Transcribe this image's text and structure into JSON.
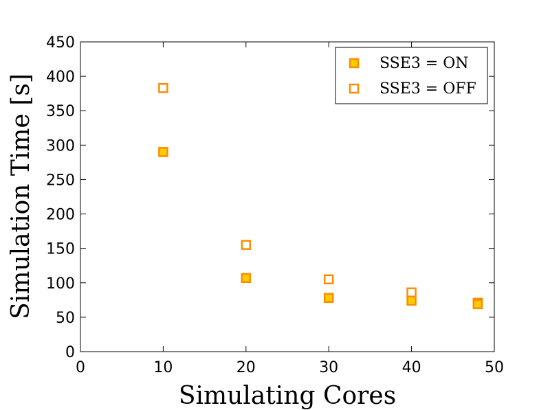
{
  "chart_data": {
    "type": "scatter",
    "title": "",
    "xlabel": "Simulating Cores",
    "ylabel": "Simulation Time [s]",
    "xlim": [
      0,
      50
    ],
    "ylim": [
      0,
      450
    ],
    "xticks": [
      0,
      10,
      20,
      30,
      40,
      50
    ],
    "yticks": [
      0,
      50,
      100,
      150,
      200,
      250,
      300,
      350,
      400,
      450
    ],
    "grid": false,
    "legend_position": "top-right",
    "series": [
      {
        "name": "SSE3 = ON",
        "marker": "square-filled",
        "color": "#FF8C00",
        "fill": "#FFCC00",
        "x": [
          10,
          20,
          30,
          40,
          48
        ],
        "y": [
          290,
          107,
          78,
          74,
          69
        ]
      },
      {
        "name": "SSE3 = OFF",
        "marker": "square-open",
        "color": "#FF8C00",
        "fill": "#FFFFFF",
        "x": [
          10,
          20,
          30,
          40,
          48
        ],
        "y": [
          383,
          155,
          105,
          86,
          71
        ]
      }
    ]
  }
}
